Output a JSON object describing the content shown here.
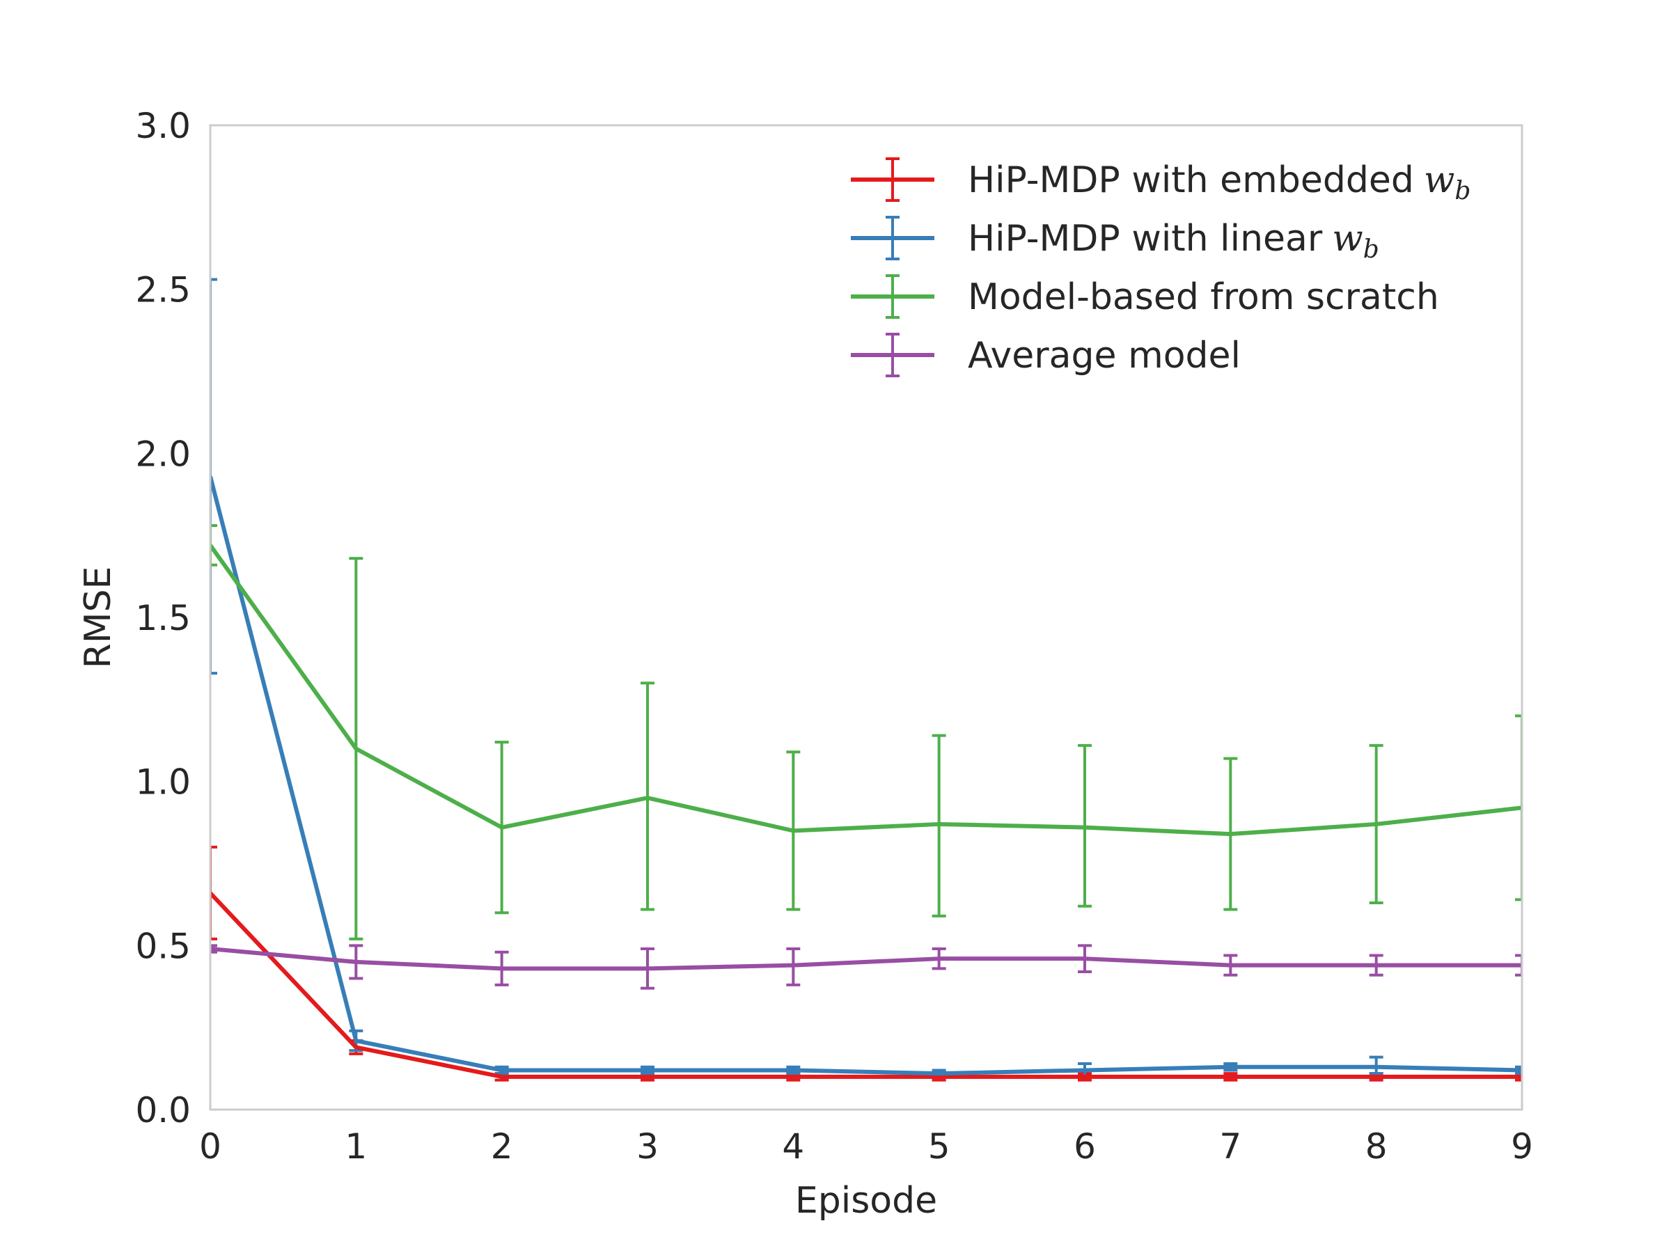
{
  "chart_data": {
    "type": "line",
    "title": "",
    "xlabel": "Episode",
    "ylabel": "RMSE",
    "xlim": [
      0,
      9
    ],
    "ylim": [
      0.0,
      3.0
    ],
    "grid": false,
    "legend_position": "top-right",
    "x_ticks": [
      "0",
      "1",
      "2",
      "3",
      "4",
      "5",
      "6",
      "7",
      "8",
      "9"
    ],
    "y_ticks": [
      "0.0",
      "0.5",
      "1.0",
      "1.5",
      "2.0",
      "2.5",
      "3.0"
    ],
    "x": [
      0,
      1,
      2,
      3,
      4,
      5,
      6,
      7,
      8,
      9
    ],
    "series": [
      {
        "name": "HiP-MDP with embedded",
        "math": "w",
        "sub": "b",
        "color": "#e41a1c",
        "values": [
          0.66,
          0.19,
          0.1,
          0.1,
          0.1,
          0.1,
          0.1,
          0.1,
          0.1,
          0.1
        ],
        "lower": [
          0.52,
          0.17,
          0.09,
          0.09,
          0.09,
          0.09,
          0.09,
          0.09,
          0.09,
          0.09
        ],
        "upper": [
          0.8,
          0.21,
          0.11,
          0.11,
          0.11,
          0.11,
          0.11,
          0.11,
          0.11,
          0.11
        ]
      },
      {
        "name": "HiP-MDP with linear",
        "math": "w",
        "sub": "b",
        "color": "#377eb8",
        "values": [
          1.93,
          0.21,
          0.12,
          0.12,
          0.12,
          0.11,
          0.12,
          0.13,
          0.13,
          0.12
        ],
        "lower": [
          1.33,
          0.18,
          0.11,
          0.11,
          0.11,
          0.1,
          0.1,
          0.12,
          0.11,
          0.11
        ],
        "upper": [
          2.53,
          0.24,
          0.13,
          0.13,
          0.13,
          0.12,
          0.14,
          0.14,
          0.16,
          0.13
        ]
      },
      {
        "name": "Model-based from scratch",
        "color": "#4daf4a",
        "values": [
          1.72,
          1.1,
          0.86,
          0.95,
          0.85,
          0.87,
          0.86,
          0.84,
          0.87,
          0.92
        ],
        "lower": [
          1.66,
          0.52,
          0.6,
          0.61,
          0.61,
          0.59,
          0.62,
          0.61,
          0.63,
          0.64
        ],
        "upper": [
          1.78,
          1.68,
          1.12,
          1.3,
          1.09,
          1.14,
          1.11,
          1.07,
          1.11,
          1.2
        ]
      },
      {
        "name": "Average model",
        "color": "#984ea3",
        "values": [
          0.49,
          0.45,
          0.43,
          0.43,
          0.44,
          0.46,
          0.46,
          0.44,
          0.44,
          0.44
        ],
        "lower": [
          0.48,
          0.4,
          0.38,
          0.37,
          0.38,
          0.43,
          0.42,
          0.41,
          0.41,
          0.41
        ],
        "upper": [
          0.5,
          0.5,
          0.48,
          0.49,
          0.49,
          0.49,
          0.5,
          0.47,
          0.47,
          0.47
        ]
      }
    ]
  }
}
